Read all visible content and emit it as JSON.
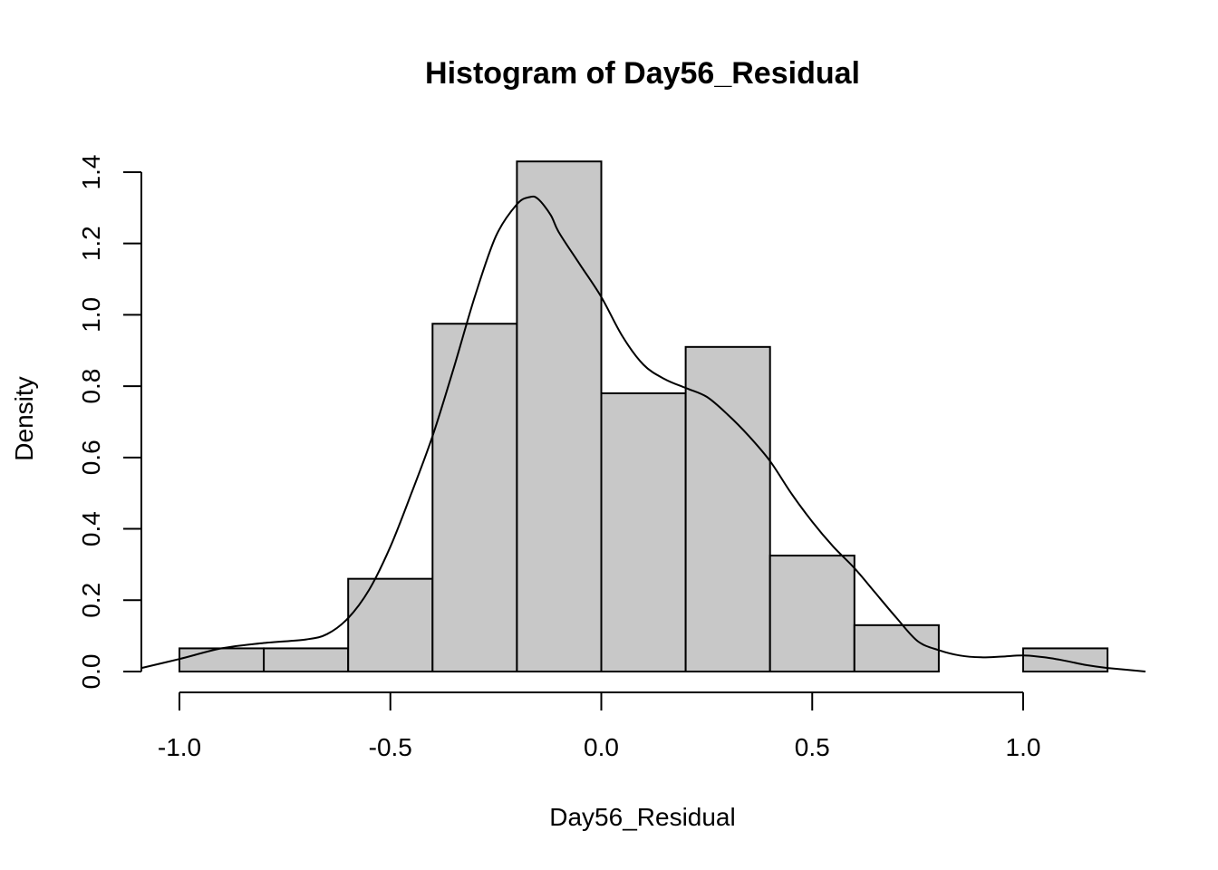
{
  "chart_data": {
    "type": "bar",
    "title": "Histogram of Day56_Residual",
    "xlabel": "Day56_Residual",
    "ylabel": "Density",
    "xlim": [
      -1.09,
      1.29
    ],
    "ylim": [
      0,
      1.4
    ],
    "x_ticks": [
      -1.0,
      -0.5,
      0.0,
      0.5,
      1.0
    ],
    "x_tick_labels": [
      "-1.0",
      "-0.5",
      "0.0",
      "0.5",
      "1.0"
    ],
    "y_ticks": [
      0.0,
      0.2,
      0.4,
      0.6,
      0.8,
      1.0,
      1.2,
      1.4
    ],
    "y_tick_labels": [
      "0.0",
      "0.2",
      "0.4",
      "0.6",
      "0.8",
      "1.0",
      "1.2",
      "1.4"
    ],
    "bins": [
      {
        "x0": -1.0,
        "x1": -0.8,
        "density": 0.065
      },
      {
        "x0": -0.8,
        "x1": -0.6,
        "density": 0.065
      },
      {
        "x0": -0.6,
        "x1": -0.4,
        "density": 0.26
      },
      {
        "x0": -0.4,
        "x1": -0.2,
        "density": 0.975
      },
      {
        "x0": -0.2,
        "x1": 0.0,
        "density": 1.43
      },
      {
        "x0": 0.0,
        "x1": 0.2,
        "density": 0.78
      },
      {
        "x0": 0.2,
        "x1": 0.4,
        "density": 0.91
      },
      {
        "x0": 0.4,
        "x1": 0.6,
        "density": 0.325
      },
      {
        "x0": 0.6,
        "x1": 0.8,
        "density": 0.13
      },
      {
        "x0": 0.8,
        "x1": 1.0,
        "density": 0.0
      },
      {
        "x0": 1.0,
        "x1": 1.2,
        "density": 0.065
      }
    ],
    "density_curve": {
      "x": [
        -1.09,
        -1.0,
        -0.9,
        -0.8,
        -0.7,
        -0.65,
        -0.6,
        -0.55,
        -0.5,
        -0.45,
        -0.4,
        -0.35,
        -0.3,
        -0.25,
        -0.2,
        -0.17,
        -0.15,
        -0.12,
        -0.1,
        -0.05,
        0.0,
        0.05,
        0.1,
        0.15,
        0.2,
        0.25,
        0.3,
        0.35,
        0.4,
        0.45,
        0.5,
        0.55,
        0.6,
        0.65,
        0.7,
        0.75,
        0.8,
        0.85,
        0.9,
        0.95,
        1.0,
        1.05,
        1.1,
        1.15,
        1.2,
        1.29
      ],
      "y": [
        0.01,
        0.035,
        0.065,
        0.08,
        0.09,
        0.105,
        0.15,
        0.23,
        0.35,
        0.5,
        0.66,
        0.85,
        1.05,
        1.22,
        1.31,
        1.33,
        1.325,
        1.28,
        1.23,
        1.14,
        1.05,
        0.94,
        0.86,
        0.82,
        0.795,
        0.77,
        0.72,
        0.66,
        0.59,
        0.5,
        0.42,
        0.35,
        0.29,
        0.22,
        0.15,
        0.085,
        0.06,
        0.045,
        0.04,
        0.042,
        0.045,
        0.04,
        0.03,
        0.018,
        0.01,
        0.0
      ]
    }
  }
}
